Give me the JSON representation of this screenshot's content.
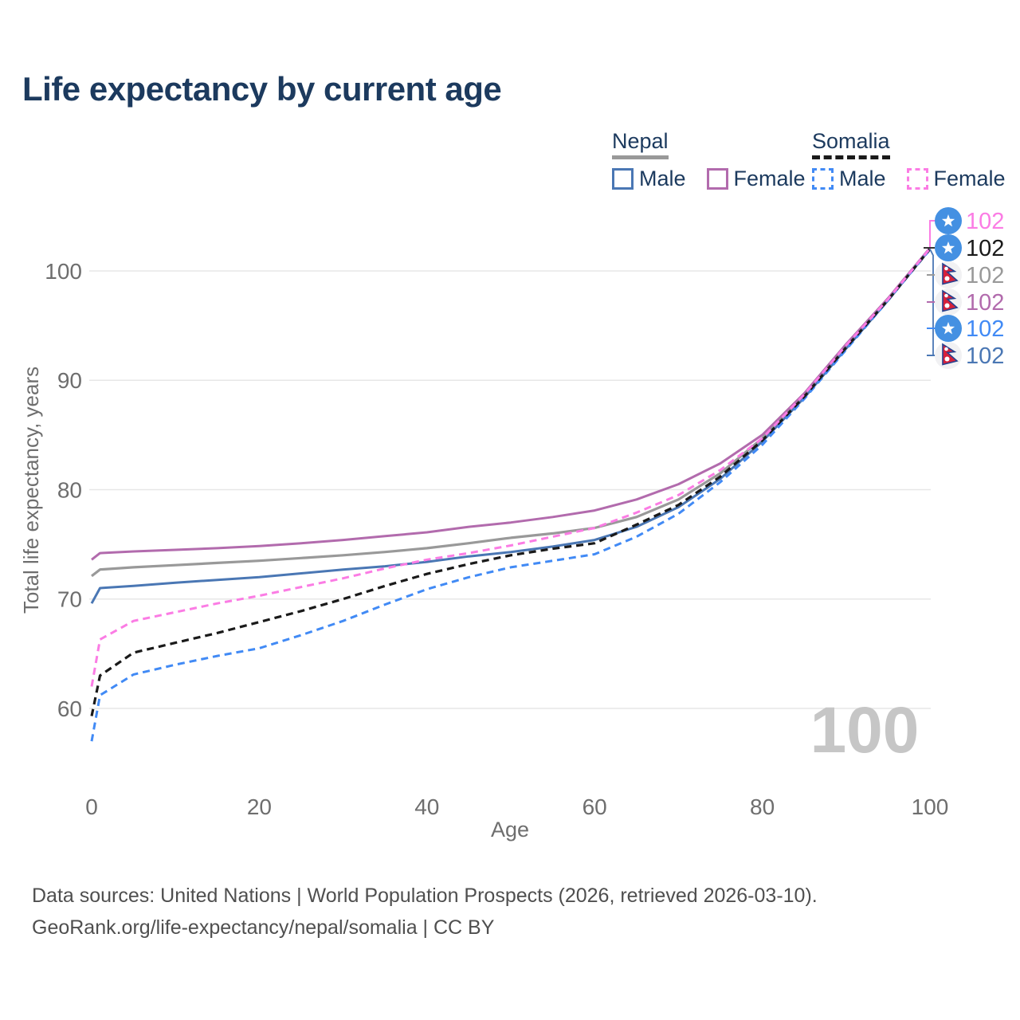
{
  "title": "Life expectancy by current age",
  "legend": {
    "groups": [
      {
        "name": "Nepal",
        "line_style": "solid",
        "underline_color": "#999999",
        "items": [
          {
            "label": "Male",
            "color": "#4a77b4",
            "dashed": false
          },
          {
            "label": "Female",
            "color": "#b26bad",
            "dashed": false
          }
        ]
      },
      {
        "name": "Somalia",
        "line_style": "dashed",
        "underline_color": "#1a1a1a",
        "items": [
          {
            "label": "Male",
            "color": "#418af5",
            "dashed": true
          },
          {
            "label": "Female",
            "color": "#fb7ce4",
            "dashed": true
          }
        ]
      }
    ]
  },
  "chart_data": {
    "type": "line",
    "title": "Life expectancy by current age",
    "xlabel": "Age",
    "ylabel": "Total life expectancy, years",
    "xlim": [
      0,
      100
    ],
    "ylim": [
      55,
      104
    ],
    "xticks": [
      0,
      20,
      40,
      60,
      80,
      100
    ],
    "yticks": [
      60,
      70,
      80,
      90,
      100
    ],
    "grid": "horizontal-only",
    "gridline_color": "#e7e7e7",
    "tick_label_color": "#6e6e6e",
    "watermark": "100",
    "watermark_color": "#c6c6c6",
    "x_ages": [
      0,
      1,
      5,
      10,
      15,
      20,
      25,
      30,
      35,
      40,
      45,
      50,
      55,
      60,
      65,
      70,
      75,
      80,
      85,
      90,
      95,
      100
    ],
    "series": [
      {
        "name": "Nepal",
        "country": "Nepal",
        "sex": "both",
        "color": "#999999",
        "dash": false,
        "values": [
          72.1,
          72.7,
          72.9,
          73.1,
          73.3,
          73.5,
          73.75,
          74.0,
          74.3,
          74.65,
          75.1,
          75.6,
          76.0,
          76.5,
          77.5,
          79.1,
          81.5,
          84.7,
          88.6,
          93.1,
          97.4,
          102.0
        ]
      },
      {
        "name": "Nepal Female",
        "country": "Nepal",
        "sex": "female",
        "color": "#b26bad",
        "dash": false,
        "values": [
          73.6,
          74.2,
          74.35,
          74.5,
          74.65,
          74.85,
          75.1,
          75.4,
          75.75,
          76.1,
          76.6,
          77.0,
          77.5,
          78.1,
          79.1,
          80.5,
          82.4,
          85.0,
          88.8,
          93.3,
          97.5,
          102.1
        ]
      },
      {
        "name": "Nepal Male",
        "country": "Nepal",
        "sex": "male",
        "color": "#4a77b4",
        "dash": false,
        "values": [
          69.6,
          71.0,
          71.2,
          71.5,
          71.75,
          72.0,
          72.35,
          72.7,
          73.0,
          73.4,
          73.9,
          74.3,
          74.8,
          75.4,
          76.6,
          78.4,
          81.0,
          84.4,
          88.4,
          92.9,
          97.3,
          102.0
        ]
      },
      {
        "name": "Somalia Male",
        "country": "Somalia",
        "sex": "male",
        "color": "#418af5",
        "dash": true,
        "values": [
          57.0,
          61.2,
          63.1,
          64.0,
          64.8,
          65.5,
          66.7,
          68.0,
          69.5,
          70.9,
          72.0,
          72.9,
          73.5,
          74.1,
          75.7,
          77.8,
          80.7,
          84.1,
          88.3,
          92.8,
          97.3,
          101.95
        ]
      },
      {
        "name": "Somalia",
        "country": "Somalia",
        "sex": "both",
        "color": "#1a1a1a",
        "dash": true,
        "values": [
          59.3,
          63.0,
          65.1,
          66.0,
          66.9,
          67.9,
          68.9,
          70.0,
          71.2,
          72.3,
          73.2,
          74.0,
          74.6,
          75.1,
          76.8,
          78.6,
          81.2,
          84.5,
          88.5,
          93.0,
          97.35,
          102.0
        ]
      },
      {
        "name": "Somalia Female",
        "country": "Somalia",
        "sex": "female",
        "color": "#fb7ce4",
        "dash": true,
        "values": [
          62.0,
          66.3,
          68.0,
          68.8,
          69.6,
          70.3,
          71.1,
          71.9,
          72.8,
          73.6,
          74.2,
          74.9,
          75.7,
          76.5,
          77.9,
          79.5,
          81.8,
          84.7,
          88.7,
          93.2,
          97.4,
          102.05
        ]
      }
    ],
    "end_labels": [
      {
        "series": "Somalia Female",
        "flag": "somalia",
        "value": "102",
        "color": "#fb7ce4"
      },
      {
        "series": "Somalia",
        "flag": "somalia",
        "value": "102",
        "color": "#1a1a1a"
      },
      {
        "series": "Nepal",
        "flag": "nepal",
        "value": "102",
        "color": "#999999"
      },
      {
        "series": "Nepal Female",
        "flag": "nepal",
        "value": "102",
        "color": "#b26bad"
      },
      {
        "series": "Somalia Male",
        "flag": "somalia",
        "value": "102",
        "color": "#418af5"
      },
      {
        "series": "Nepal Male",
        "flag": "nepal",
        "value": "102",
        "color": "#4a77b4"
      }
    ],
    "flag_colors": {
      "somalia_bg": "#4490e2",
      "somalia_star": "#ffffff",
      "nepal_bg": "#f1f1f3",
      "nepal_red": "#d6203a",
      "nepal_border": "#26418f"
    }
  },
  "footer": {
    "line1": "Data sources: United Nations | World Population Prospects (2026, retrieved 2026-03-10).",
    "line2": "GeoRank.org/life-expectancy/nepal/somalia | CC BY"
  }
}
